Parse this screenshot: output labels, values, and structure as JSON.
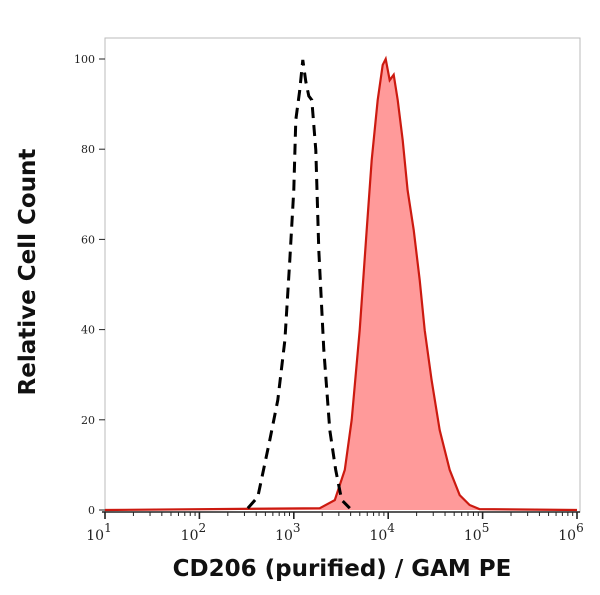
{
  "chart_data": {
    "type": "area",
    "title": "",
    "xlabel": "CD206 (purified) / GAM PE",
    "ylabel": "Relative Cell Count",
    "xscale": "log",
    "xlim": [
      10,
      1000000
    ],
    "ylim": [
      0,
      100
    ],
    "grid": false,
    "x_tick_labels": [
      {
        "base": "10",
        "exp": "1",
        "value": 10
      },
      {
        "base": "10",
        "exp": "2",
        "value": 100
      },
      {
        "base": "10",
        "exp": "3",
        "value": 1000
      },
      {
        "base": "10",
        "exp": "4",
        "value": 10000
      },
      {
        "base": "10",
        "exp": "5",
        "value": 100000
      },
      {
        "base": "10",
        "exp": "6",
        "value": 1000000
      }
    ],
    "y_tick_labels": [
      "0",
      "20",
      "40",
      "60",
      "80",
      "100"
    ],
    "series": [
      {
        "style": "dashed-line",
        "color": "#000000",
        "x": [
          326,
          416,
          557,
          677,
          804,
          907,
          1000,
          1050,
          1156,
          1245,
          1340,
          1442,
          1550,
          1710,
          1840,
          2077,
          2404,
          2780,
          3220,
          3915
        ],
        "y": [
          0.4,
          2.9,
          15.5,
          24.4,
          37.7,
          55.4,
          71,
          86.5,
          93,
          99.8,
          95,
          91.8,
          90.9,
          79.8,
          57.6,
          35.5,
          17.7,
          8.9,
          2.2,
          0.4
        ]
      },
      {
        "style": "filled",
        "color": "#cc1a10",
        "fill": "#ff9a9a",
        "x": [
          10,
          1884,
          2716,
          3467,
          4110,
          4990,
          5916,
          6683,
          7745,
          8750,
          9419,
          10380,
          11430,
          12600,
          14230,
          16070,
          18620,
          21540,
          24330,
          28840,
          35080,
          44770,
          57150,
          72800,
          92900,
          1000000
        ],
        "y": [
          0,
          0.4,
          2.2,
          8.9,
          20,
          39.9,
          62.1,
          77.6,
          90.9,
          98.7,
          100,
          95.3,
          96.5,
          90.9,
          82,
          70.9,
          62.1,
          51,
          39.9,
          28.8,
          17.7,
          8.9,
          3.3,
          1.1,
          0.2,
          0
        ]
      }
    ]
  }
}
